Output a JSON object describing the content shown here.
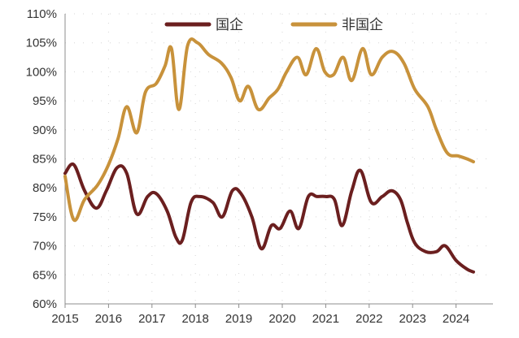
{
  "chart_data": {
    "type": "line",
    "title": "",
    "xlabel": "",
    "ylabel": "",
    "ylim": [
      60,
      110
    ],
    "xlim": [
      2015,
      2024.85
    ],
    "y_ticks": [
      60,
      65,
      70,
      75,
      80,
      85,
      90,
      95,
      100,
      105,
      110
    ],
    "y_tick_labels": [
      "60%",
      "65%",
      "70%",
      "75%",
      "80%",
      "85%",
      "90%",
      "95%",
      "100%",
      "105%",
      "110%"
    ],
    "x_ticks": [
      2015,
      2016,
      2017,
      2018,
      2019,
      2020,
      2021,
      2022,
      2023,
      2024
    ],
    "x_tick_labels": [
      "2015",
      "2016",
      "2017",
      "2018",
      "2019",
      "2020",
      "2021",
      "2022",
      "2023",
      "2024"
    ],
    "grid": "dotted",
    "legend": "top-center",
    "series": [
      {
        "name": "国企",
        "color": "#6b1f1f",
        "points": [
          [
            2015.0,
            82.5
          ],
          [
            2015.2,
            84.0
          ],
          [
            2015.45,
            79.5
          ],
          [
            2015.72,
            76.5
          ],
          [
            2015.95,
            79.5
          ],
          [
            2016.2,
            83.5
          ],
          [
            2016.42,
            82.5
          ],
          [
            2016.65,
            75.5
          ],
          [
            2016.9,
            78.5
          ],
          [
            2017.1,
            79.0
          ],
          [
            2017.35,
            76.0
          ],
          [
            2017.55,
            71.5
          ],
          [
            2017.7,
            71.0
          ],
          [
            2017.9,
            77.5
          ],
          [
            2018.1,
            78.5
          ],
          [
            2018.4,
            77.5
          ],
          [
            2018.62,
            75.0
          ],
          [
            2018.85,
            79.5
          ],
          [
            2019.05,
            79.0
          ],
          [
            2019.3,
            75.0
          ],
          [
            2019.52,
            69.5
          ],
          [
            2019.75,
            73.5
          ],
          [
            2019.95,
            73.0
          ],
          [
            2020.18,
            76.0
          ],
          [
            2020.38,
            73.0
          ],
          [
            2020.6,
            78.5
          ],
          [
            2020.8,
            78.5
          ],
          [
            2021.0,
            78.5
          ],
          [
            2021.2,
            78.0
          ],
          [
            2021.38,
            73.5
          ],
          [
            2021.6,
            79.5
          ],
          [
            2021.8,
            83.0
          ],
          [
            2022.05,
            77.5
          ],
          [
            2022.3,
            78.5
          ],
          [
            2022.52,
            79.5
          ],
          [
            2022.72,
            78.0
          ],
          [
            2022.88,
            74.0
          ],
          [
            2023.05,
            70.5
          ],
          [
            2023.3,
            69.0
          ],
          [
            2023.55,
            69.0
          ],
          [
            2023.75,
            70.0
          ],
          [
            2024.0,
            67.5
          ],
          [
            2024.25,
            66.0
          ],
          [
            2024.4,
            65.5
          ]
        ]
      },
      {
        "name": "非国企",
        "color": "#c8923b",
        "points": [
          [
            2015.0,
            82.0
          ],
          [
            2015.2,
            74.5
          ],
          [
            2015.45,
            78.0
          ],
          [
            2015.75,
            80.5
          ],
          [
            2016.0,
            84.0
          ],
          [
            2016.22,
            88.5
          ],
          [
            2016.42,
            94.0
          ],
          [
            2016.65,
            89.5
          ],
          [
            2016.85,
            96.5
          ],
          [
            2017.1,
            98.0
          ],
          [
            2017.3,
            101.0
          ],
          [
            2017.45,
            104.0
          ],
          [
            2017.62,
            93.5
          ],
          [
            2017.82,
            104.5
          ],
          [
            2018.05,
            105.0
          ],
          [
            2018.3,
            103.0
          ],
          [
            2018.6,
            101.5
          ],
          [
            2018.82,
            99.0
          ],
          [
            2019.02,
            95.0
          ],
          [
            2019.22,
            97.5
          ],
          [
            2019.45,
            93.5
          ],
          [
            2019.7,
            95.5
          ],
          [
            2019.9,
            97.0
          ],
          [
            2020.1,
            100.0
          ],
          [
            2020.35,
            102.5
          ],
          [
            2020.55,
            99.5
          ],
          [
            2020.78,
            104.0
          ],
          [
            2020.98,
            100.0
          ],
          [
            2021.18,
            99.5
          ],
          [
            2021.4,
            102.5
          ],
          [
            2021.6,
            98.5
          ],
          [
            2021.85,
            104.0
          ],
          [
            2022.05,
            99.5
          ],
          [
            2022.3,
            102.5
          ],
          [
            2022.55,
            103.5
          ],
          [
            2022.8,
            101.5
          ],
          [
            2023.05,
            97.0
          ],
          [
            2023.35,
            94.0
          ],
          [
            2023.55,
            90.0
          ],
          [
            2023.8,
            86.0
          ],
          [
            2024.05,
            85.5
          ],
          [
            2024.25,
            85.0
          ],
          [
            2024.4,
            84.5
          ]
        ]
      }
    ]
  }
}
